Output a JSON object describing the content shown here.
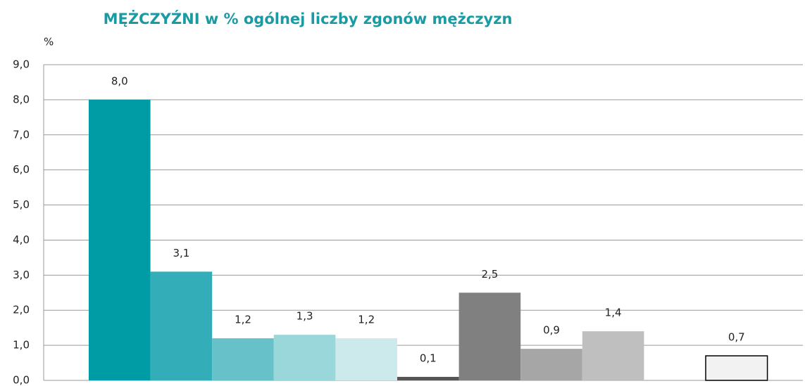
{
  "chart_data": {
    "type": "bar",
    "title": "MĘŻCZYŹNI w % ogólnej liczby zgonów mężczyzn",
    "y_label": "%",
    "categories": [
      null,
      null,
      null,
      null,
      null,
      null,
      null,
      null,
      null,
      null,
      null
    ],
    "values": [
      8.0,
      3.1,
      1.2,
      1.3,
      1.2,
      0.1,
      2.5,
      0.9,
      1.4,
      null,
      0.7
    ],
    "value_labels": [
      "8,0",
      "3,1",
      "1,2",
      "1,3",
      "1,2",
      "0,1",
      "2,5",
      "0,9",
      "1,4",
      null,
      "0,7"
    ],
    "colors": [
      "#009ca6",
      "#33aeb8",
      "#66c1c8",
      "#99d7da",
      "#cceaec",
      "#555555",
      "#808080",
      "#a6a6a6",
      "#bfbfbf",
      null,
      "#f2f2f2"
    ],
    "ylim": [
      0,
      9
    ],
    "yticks": [
      {
        "value": 0,
        "label": "0,0"
      },
      {
        "value": 1,
        "label": "1,0"
      },
      {
        "value": 2,
        "label": "2,0"
      },
      {
        "value": 3,
        "label": "3,0"
      },
      {
        "value": 4,
        "label": "4,0"
      },
      {
        "value": 5,
        "label": "5,0"
      },
      {
        "value": 6,
        "label": "6,0"
      },
      {
        "value": 7,
        "label": "7,0"
      },
      {
        "value": 8,
        "label": "8,0"
      },
      {
        "value": 9,
        "label": "9,0"
      }
    ],
    "grid": true
  }
}
